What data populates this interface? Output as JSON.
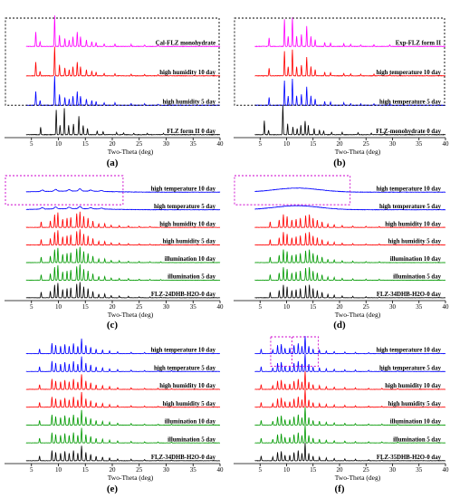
{
  "palette": {
    "magenta": "#ff00ff",
    "red": "#ff0000",
    "blue": "#0000ff",
    "green": "#009900",
    "black": "#000000",
    "box_black": "#000000",
    "box_magenta": "#cc00cc"
  },
  "chart_data": [
    {
      "type": "line",
      "panel_label": "(a)",
      "xlabel": "Two-Theta (deg)",
      "xlim": [
        0,
        40
      ],
      "x_ticks": [
        5,
        10,
        15,
        20,
        25,
        30,
        35,
        40
      ],
      "highlight_box": {
        "color": "black",
        "x_range": [
          0,
          40
        ],
        "traces": [
          0,
          2
        ]
      },
      "series": [
        {
          "name": "Cal-FLZ monohydrate",
          "color": "magenta",
          "style": "hydrate_calc"
        },
        {
          "name": "high humidity 10 day",
          "color": "red",
          "style": "hydrate"
        },
        {
          "name": "high humidity 5 day",
          "color": "blue",
          "style": "hydrate"
        },
        {
          "name": "FLZ form II 0 day",
          "color": "black",
          "style": "formII"
        }
      ]
    },
    {
      "type": "line",
      "panel_label": "(b)",
      "xlabel": "Two-Theta (deg)",
      "xlim": [
        0,
        40
      ],
      "x_ticks": [
        5,
        10,
        15,
        20,
        25,
        30,
        35,
        40
      ],
      "highlight_box": {
        "color": "black",
        "x_range": [
          0,
          40
        ],
        "traces": [
          0,
          2
        ]
      },
      "series": [
        {
          "name": "Exp-FLZ form II",
          "color": "magenta",
          "style": "formII_exp"
        },
        {
          "name": "high temperature 10 day",
          "color": "red",
          "style": "formII"
        },
        {
          "name": "high temperature 5 day",
          "color": "blue",
          "style": "formII"
        },
        {
          "name": "FLZ-monohydrate 0 day",
          "color": "black",
          "style": "hydrate"
        }
      ]
    },
    {
      "type": "line",
      "panel_label": "(c)",
      "xlabel": "Two-Theta (deg)",
      "xlim": [
        0,
        40
      ],
      "x_ticks": [
        5,
        10,
        15,
        20,
        25,
        30,
        35,
        40
      ],
      "highlight_box": {
        "color": "magenta",
        "x_range": [
          0,
          22
        ],
        "traces": [
          0,
          1
        ]
      },
      "series": [
        {
          "name": "high temperature 10 day",
          "color": "blue",
          "style": "amorphous_bumpy"
        },
        {
          "name": "high temperature 5 day",
          "color": "blue",
          "style": "amorphous_bumpy"
        },
        {
          "name": "high humidity 10 day",
          "color": "red",
          "style": "dhb24"
        },
        {
          "name": "high humidity 5 day",
          "color": "red",
          "style": "dhb24"
        },
        {
          "name": "illumination 10 day",
          "color": "green",
          "style": "dhb24"
        },
        {
          "name": "illumination 5 day",
          "color": "green",
          "style": "dhb24"
        },
        {
          "name": "FLZ-24DHB-H2O-0 day",
          "color": "black",
          "style": "dhb24"
        }
      ]
    },
    {
      "type": "line",
      "panel_label": "(d)",
      "xlabel": "Two-Theta (deg)",
      "xlim": [
        0,
        40
      ],
      "x_ticks": [
        5,
        10,
        15,
        20,
        25,
        30,
        35,
        40
      ],
      "highlight_box": {
        "color": "magenta",
        "x_range": [
          0,
          22
        ],
        "traces": [
          0,
          1
        ]
      },
      "series": [
        {
          "name": "high temperature 10 day",
          "color": "blue",
          "style": "amorphous_halo"
        },
        {
          "name": "high temperature 5 day",
          "color": "blue",
          "style": "amorphous_halo"
        },
        {
          "name": "high humidity 10 day",
          "color": "red",
          "style": "dhb34d"
        },
        {
          "name": "high humidity 5 day",
          "color": "red",
          "style": "dhb34d"
        },
        {
          "name": "illumination 10 day",
          "color": "green",
          "style": "dhb34d"
        },
        {
          "name": "illumination 5 day",
          "color": "green",
          "style": "dhb34d"
        },
        {
          "name": "FLZ-34DHB-H2O-0 day",
          "color": "black",
          "style": "dhb34d"
        }
      ]
    },
    {
      "type": "line",
      "panel_label": "(e)",
      "xlabel": "Two-Theta (deg)",
      "xlim": [
        0,
        40
      ],
      "x_ticks": [
        5,
        10,
        15,
        20,
        25,
        30,
        35,
        40
      ],
      "series": [
        {
          "name": "high temperature 10 day",
          "color": "blue",
          "style": "dhb34e"
        },
        {
          "name": "high temperature 5 day",
          "color": "blue",
          "style": "dhb34e"
        },
        {
          "name": "high humidity 10 day",
          "color": "red",
          "style": "dhb34e"
        },
        {
          "name": "high humidity 5 day",
          "color": "red",
          "style": "dhb34e"
        },
        {
          "name": "illumination 10 day",
          "color": "green",
          "style": "dhb34e"
        },
        {
          "name": "illumination 5 day",
          "color": "green",
          "style": "dhb34e"
        },
        {
          "name": "FLZ-34DHB-H2O-0 day",
          "color": "black",
          "style": "dhb34e"
        }
      ]
    },
    {
      "type": "line",
      "panel_label": "(f)",
      "xlabel": "Two-Theta (deg)",
      "xlim": [
        0,
        40
      ],
      "x_ticks": [
        5,
        10,
        15,
        20,
        25,
        30,
        35,
        40
      ],
      "highlight_box": {
        "color": "magenta",
        "x_range": [
          7,
          16
        ],
        "traces": [
          0,
          1
        ],
        "dashed_divider_x": 11
      },
      "series": [
        {
          "name": "high temperature 10 day",
          "color": "blue",
          "style": "dhb35"
        },
        {
          "name": "high temperature 5 day",
          "color": "blue",
          "style": "dhb35"
        },
        {
          "name": "high humidity 10 day",
          "color": "red",
          "style": "dhb35"
        },
        {
          "name": "high humidity 5 day",
          "color": "red",
          "style": "dhb35"
        },
        {
          "name": "illumination 10 day",
          "color": "green",
          "style": "dhb35"
        },
        {
          "name": "illumination 5 day",
          "color": "green",
          "style": "dhb35"
        },
        {
          "name": "FLZ-35DHB-H2O-0 day",
          "color": "black",
          "style": "dhb35"
        }
      ]
    }
  ]
}
